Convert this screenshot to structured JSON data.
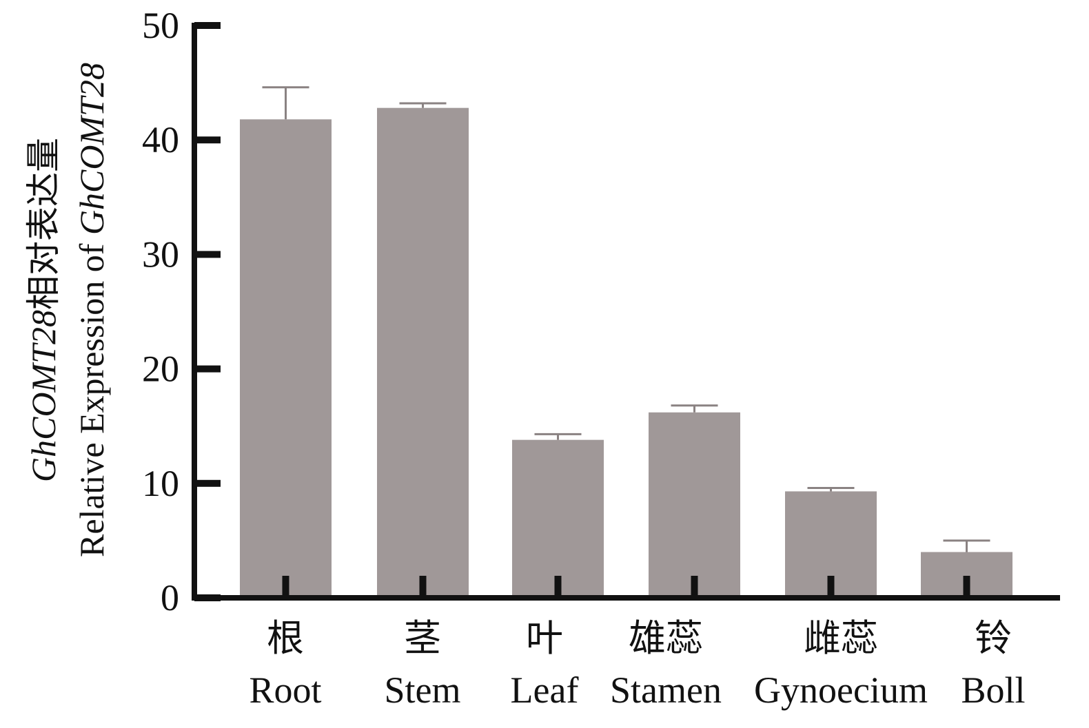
{
  "chart_data": {
    "type": "bar",
    "title": "",
    "ylabel_cn": "相对表达量",
    "ylabel_gene": "GhCOMT28",
    "ylabel_en": "Relative Expression of ",
    "xlabel": "",
    "ylim": [
      0,
      50
    ],
    "yticks": [
      0,
      10,
      20,
      30,
      40,
      50
    ],
    "grid": false,
    "categories_cn": [
      "根",
      "茎",
      "叶",
      "雄蕊",
      "雌蕊",
      "铃"
    ],
    "categories": [
      "Root",
      "Stem",
      "Leaf",
      "Stamen",
      "Gynoecium",
      "Boll"
    ],
    "values": [
      41.8,
      42.8,
      13.8,
      16.2,
      9.3,
      4.0
    ],
    "error_upper": [
      44.6,
      43.2,
      14.3,
      16.8,
      9.6,
      5.0
    ],
    "bar_color": "#a09898",
    "axis_color": "#111111"
  }
}
